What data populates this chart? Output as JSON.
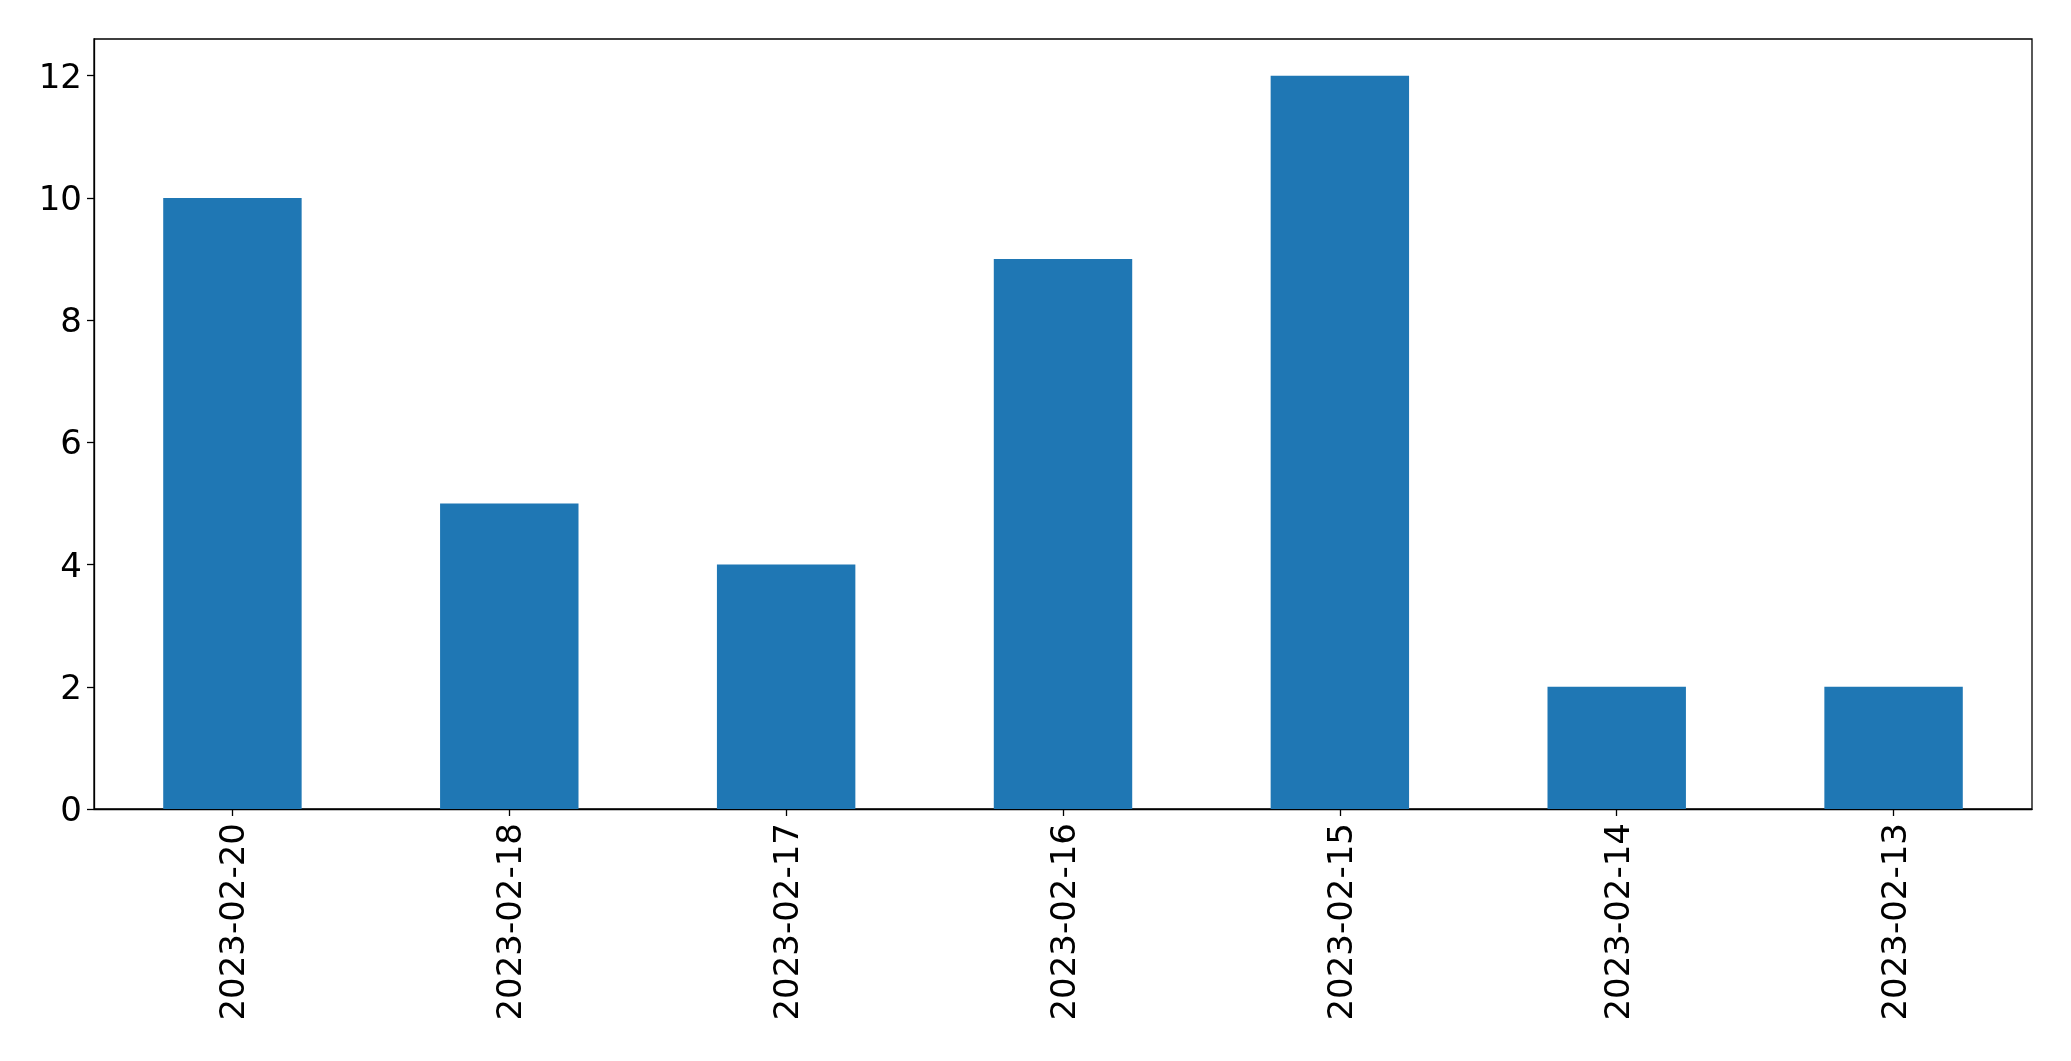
{
  "chart_data": {
    "type": "bar",
    "categories": [
      "2023-02-20",
      "2023-02-18",
      "2023-02-17",
      "2023-02-16",
      "2023-02-15",
      "2023-02-14",
      "2023-02-13"
    ],
    "values": [
      10,
      5,
      4,
      9,
      12,
      2,
      2
    ],
    "color": "#1f77b4",
    "ylim": [
      0,
      12.6
    ],
    "yticks": [
      0,
      2,
      4,
      6,
      8,
      10,
      12
    ]
  }
}
